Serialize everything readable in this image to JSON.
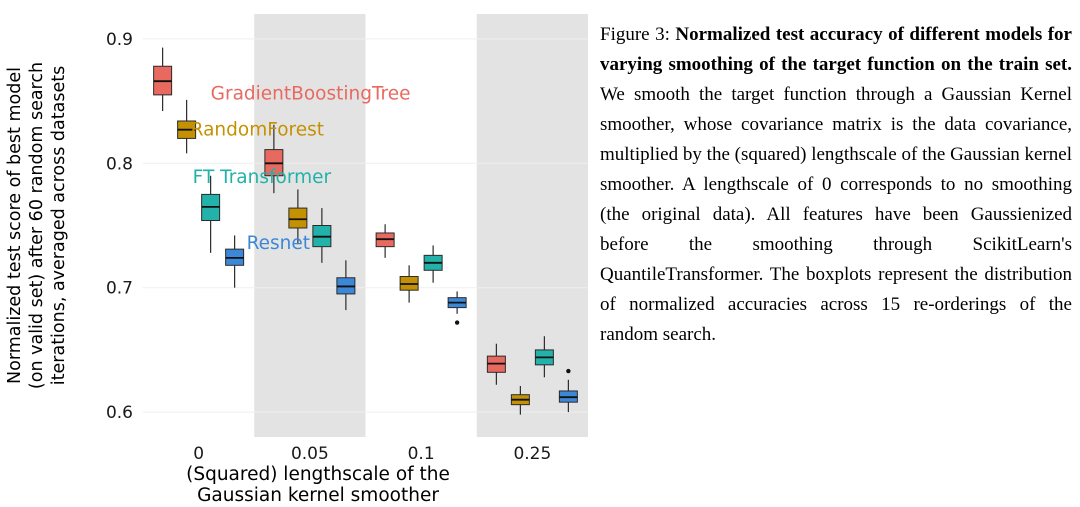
{
  "figure": {
    "caption": {
      "label": "Figure 3: ",
      "bold": "Normalized test accuracy of different models for varying smoothing of the target function on the train set.",
      "body": " We smooth the target function through a Gaussian Kernel smoother, whose covariance matrix is the data covariance, multiplied by the (squared) lengthscale of the Gaussian kernel smoother. A lengthscale of 0 corresponds to no smoothing (the original data). All features have been Gaussienized before the smoothing through ScikitLearn's QuantileTransformer. The boxplots represent the distribution of normalized accuracies across 15 re-orderings of the random search."
    }
  },
  "chart_data": {
    "type": "boxplot",
    "title": "",
    "xlabel": "(Squared) lengthscale of the\nGaussian kernel smoother",
    "ylabel": "Normalized test score of best model\n(on valid set) after 60 random search\niterations, averaged across datasets",
    "categories": [
      "0",
      "0.05",
      "0.1",
      "0.25"
    ],
    "y_ticks": [
      0.6,
      0.7,
      0.8,
      0.9
    ],
    "ylim": [
      0.58,
      0.92
    ],
    "grid": "faint-horizontal",
    "legend_position": "in-plot-text-labels",
    "shaded_category_indices": [
      1,
      3
    ],
    "shade_color": "#e3e3e3",
    "series": [
      {
        "name": "GradientBoostingTree",
        "color": "#e8695f",
        "boxes": [
          {
            "low": 0.842,
            "q1": 0.855,
            "median": 0.866,
            "q3": 0.878,
            "high": 0.893,
            "outliers": []
          },
          {
            "low": 0.776,
            "q1": 0.79,
            "median": 0.8,
            "q3": 0.811,
            "high": 0.831,
            "outliers": []
          },
          {
            "low": 0.724,
            "q1": 0.733,
            "median": 0.739,
            "q3": 0.744,
            "high": 0.751,
            "outliers": []
          },
          {
            "low": 0.622,
            "q1": 0.632,
            "median": 0.639,
            "q3": 0.645,
            "high": 0.655,
            "outliers": []
          }
        ]
      },
      {
        "name": "RandomForest",
        "color": "#c49102",
        "boxes": [
          {
            "low": 0.808,
            "q1": 0.82,
            "median": 0.827,
            "q3": 0.834,
            "high": 0.851,
            "outliers": []
          },
          {
            "low": 0.735,
            "q1": 0.748,
            "median": 0.755,
            "q3": 0.764,
            "high": 0.779,
            "outliers": []
          },
          {
            "low": 0.688,
            "q1": 0.698,
            "median": 0.703,
            "q3": 0.709,
            "high": 0.718,
            "outliers": []
          },
          {
            "low": 0.598,
            "q1": 0.606,
            "median": 0.61,
            "q3": 0.614,
            "high": 0.621,
            "outliers": []
          }
        ]
      },
      {
        "name": "FT Transformer",
        "color": "#22b2a9",
        "boxes": [
          {
            "low": 0.728,
            "q1": 0.754,
            "median": 0.765,
            "q3": 0.775,
            "high": 0.79,
            "outliers": []
          },
          {
            "low": 0.72,
            "q1": 0.733,
            "median": 0.741,
            "q3": 0.75,
            "high": 0.764,
            "outliers": []
          },
          {
            "low": 0.704,
            "q1": 0.714,
            "median": 0.72,
            "q3": 0.726,
            "high": 0.734,
            "outliers": []
          },
          {
            "low": 0.628,
            "q1": 0.638,
            "median": 0.644,
            "q3": 0.65,
            "high": 0.661,
            "outliers": []
          }
        ]
      },
      {
        "name": "Resnet",
        "color": "#3d87d8",
        "boxes": [
          {
            "low": 0.7,
            "q1": 0.718,
            "median": 0.724,
            "q3": 0.731,
            "high": 0.742,
            "outliers": []
          },
          {
            "low": 0.682,
            "q1": 0.695,
            "median": 0.701,
            "q3": 0.708,
            "high": 0.722,
            "outliers": []
          },
          {
            "low": 0.679,
            "q1": 0.684,
            "median": 0.688,
            "q3": 0.692,
            "high": 0.697,
            "outliers": [
              0.672
            ]
          },
          {
            "low": 0.6,
            "q1": 0.608,
            "median": 0.612,
            "q3": 0.617,
            "high": 0.626,
            "outliers": [
              0.633
            ]
          }
        ]
      }
    ],
    "annotations": [
      {
        "text": "GradientBoostingTree",
        "color": "#e8695f",
        "category_index": 0,
        "value": 0.856,
        "dx": 12,
        "anchor": "start"
      },
      {
        "text": "RandomForest",
        "color": "#c49102",
        "category_index": 0,
        "value": 0.827,
        "dx": -8,
        "anchor": "start"
      },
      {
        "text": "FT Transformer",
        "color": "#22b2a9",
        "category_index": 0,
        "value": 0.789,
        "dx": -6,
        "anchor": "start"
      },
      {
        "text": "Resnet",
        "color": "#3d87d8",
        "category_index": 0,
        "value": 0.736,
        "dx": 48,
        "anchor": "start"
      }
    ]
  }
}
